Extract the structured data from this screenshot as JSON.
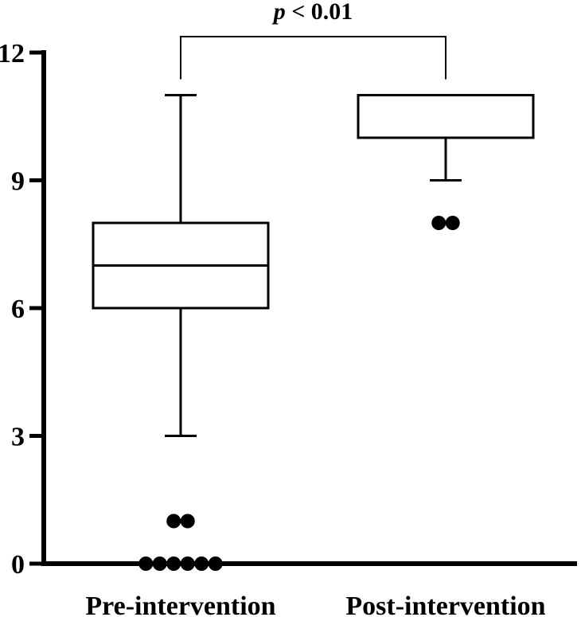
{
  "chart_data": {
    "type": "box",
    "y_ticks": [
      0,
      3,
      6,
      9,
      12
    ],
    "ylim": [
      0,
      12
    ],
    "grid": false,
    "groups": [
      {
        "label": "Pre-intervention",
        "whisker_low": 3,
        "q1": 6,
        "median": 7,
        "q3": 8,
        "whisker_high": 11,
        "outliers": [
          0,
          0,
          0,
          0,
          0,
          0,
          1,
          1
        ]
      },
      {
        "label": "Post-intervention",
        "whisker_low": 9,
        "q1": 10,
        "median": 10,
        "q3": 11,
        "whisker_high": 11,
        "outliers": [
          8,
          8
        ]
      }
    ],
    "significance": {
      "italic_part": "p",
      "rest": " < 0.01"
    }
  }
}
